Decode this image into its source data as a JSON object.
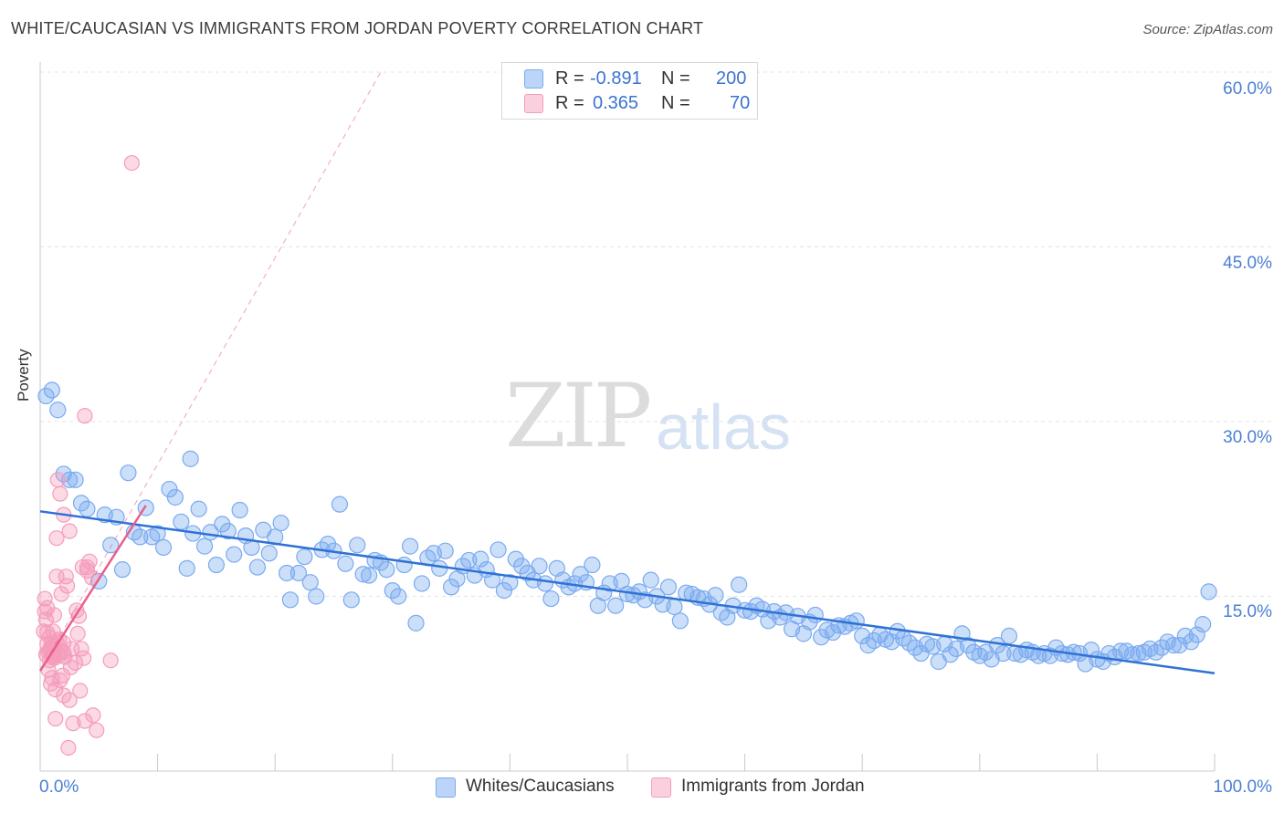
{
  "header": {
    "title": "WHITE/CAUCASIAN VS IMMIGRANTS FROM JORDAN POVERTY CORRELATION CHART",
    "source": "Source: ZipAtlas.com"
  },
  "watermark": {
    "zip": "ZIP",
    "atlas": "atlas"
  },
  "colors": {
    "blue": "#7aaaf0",
    "blue_line": "#2f72d4",
    "pink": "#f59cbb",
    "pink_line": "#e8608c",
    "tick_text": "#4a7fd4",
    "grid": "#e4e4e4"
  },
  "legend_top": {
    "rows": [
      {
        "r_label": "R =",
        "r_value": "-0.891",
        "n_label": "N =",
        "n_value": "200"
      },
      {
        "r_label": "R =",
        "r_value": "0.365",
        "n_label": "N =",
        "n_value": "70"
      }
    ]
  },
  "legend_bottom": {
    "items": [
      "Whites/Caucasians",
      "Immigrants from Jordan"
    ]
  },
  "chart_data": {
    "type": "scatter",
    "title": "WHITE/CAUCASIAN VS IMMIGRANTS FROM JORDAN POVERTY CORRELATION CHART",
    "xlabel": "",
    "ylabel": "Poverty",
    "xlim": [
      0,
      100
    ],
    "ylim": [
      0,
      60
    ],
    "y_ticks": [
      "15.0%",
      "30.0%",
      "45.0%",
      "60.0%"
    ],
    "y_tick_values": [
      15,
      30,
      45,
      60
    ],
    "x_tick_labels": [
      "0.0%",
      "100.0%"
    ],
    "grid": true,
    "series": [
      {
        "name": "Whites/Caucasians",
        "r": -0.891,
        "n": 200,
        "trend": {
          "x": [
            0,
            100
          ],
          "y": [
            22.3,
            8.4
          ]
        },
        "points": [
          [
            0.5,
            32.2
          ],
          [
            1,
            32.7
          ],
          [
            1.5,
            31
          ],
          [
            2,
            25.5
          ],
          [
            2.5,
            25
          ],
          [
            3,
            25
          ],
          [
            3.5,
            23
          ],
          [
            4,
            22.5
          ],
          [
            5,
            16.3
          ],
          [
            5.5,
            22
          ],
          [
            6,
            19.4
          ],
          [
            6.5,
            21.8
          ],
          [
            7,
            17.3
          ],
          [
            7.5,
            25.6
          ],
          [
            8,
            20.5
          ],
          [
            8.5,
            20.1
          ],
          [
            9,
            22.6
          ],
          [
            9.5,
            20.1
          ],
          [
            10,
            20.4
          ],
          [
            10.5,
            19.2
          ],
          [
            11,
            24.2
          ],
          [
            11.5,
            23.5
          ],
          [
            12,
            21.4
          ],
          [
            12.5,
            17.4
          ],
          [
            12.8,
            26.8
          ],
          [
            13,
            20.4
          ],
          [
            13.5,
            22.5
          ],
          [
            14,
            19.3
          ],
          [
            14.5,
            20.5
          ],
          [
            15,
            17.7
          ],
          [
            15.5,
            21.2
          ],
          [
            16,
            20.6
          ],
          [
            16.5,
            18.6
          ],
          [
            17,
            22.4
          ],
          [
            17.5,
            20.2
          ],
          [
            18,
            19.2
          ],
          [
            18.5,
            17.5
          ],
          [
            19,
            20.7
          ],
          [
            19.5,
            18.7
          ],
          [
            20,
            20.1
          ],
          [
            20.5,
            21.3
          ],
          [
            21,
            17
          ],
          [
            21.3,
            14.7
          ],
          [
            22,
            17
          ],
          [
            22.5,
            18.4
          ],
          [
            23,
            16.2
          ],
          [
            23.5,
            15
          ],
          [
            24,
            19
          ],
          [
            24.5,
            19.5
          ],
          [
            25,
            18.9
          ],
          [
            25.5,
            22.9
          ],
          [
            26,
            17.8
          ],
          [
            26.5,
            14.7
          ],
          [
            27,
            19.4
          ],
          [
            27.5,
            16.9
          ],
          [
            28,
            16.8
          ],
          [
            28.5,
            18.1
          ],
          [
            29,
            17.9
          ],
          [
            29.5,
            17.3
          ],
          [
            30,
            15.5
          ],
          [
            30.5,
            15
          ],
          [
            31,
            17.7
          ],
          [
            31.5,
            19.3
          ],
          [
            32,
            12.7
          ],
          [
            32.5,
            16.1
          ],
          [
            33,
            18.3
          ],
          [
            33.5,
            18.7
          ],
          [
            34,
            17.4
          ],
          [
            34.5,
            18.9
          ],
          [
            35,
            15.8
          ],
          [
            35.5,
            16.5
          ],
          [
            36,
            17.6
          ],
          [
            36.5,
            18.1
          ],
          [
            37,
            16.8
          ],
          [
            37.5,
            18.2
          ],
          [
            38,
            17.3
          ],
          [
            38.5,
            16.4
          ],
          [
            39,
            19
          ],
          [
            39.5,
            15.5
          ],
          [
            40,
            16.2
          ],
          [
            40.5,
            18.2
          ],
          [
            41,
            17.6
          ],
          [
            41.5,
            17
          ],
          [
            42,
            16.4
          ],
          [
            42.5,
            17.6
          ],
          [
            43,
            16.1
          ],
          [
            43.5,
            14.8
          ],
          [
            44,
            17.4
          ],
          [
            44.5,
            16.4
          ],
          [
            45,
            15.8
          ],
          [
            45.5,
            16.1
          ],
          [
            46,
            16.9
          ],
          [
            46.5,
            16.2
          ],
          [
            47,
            17.7
          ],
          [
            47.5,
            14.2
          ],
          [
            48,
            15.3
          ],
          [
            48.5,
            16.1
          ],
          [
            49,
            14.2
          ],
          [
            49.5,
            16.3
          ],
          [
            50,
            15.2
          ],
          [
            50.5,
            15.1
          ],
          [
            51,
            15.4
          ],
          [
            51.5,
            14.7
          ],
          [
            52,
            16.4
          ],
          [
            52.5,
            15
          ],
          [
            53,
            14.3
          ],
          [
            53.5,
            15.8
          ],
          [
            54,
            14.1
          ],
          [
            54.5,
            12.9
          ],
          [
            55,
            15.3
          ],
          [
            55.5,
            15.2
          ],
          [
            56,
            14.9
          ],
          [
            56.5,
            14.8
          ],
          [
            57,
            14.3
          ],
          [
            57.5,
            15.1
          ],
          [
            58,
            13.6
          ],
          [
            58.5,
            13.2
          ],
          [
            59,
            14.2
          ],
          [
            59.5,
            16
          ],
          [
            60,
            13.8
          ],
          [
            60.5,
            13.7
          ],
          [
            61,
            14.2
          ],
          [
            61.5,
            13.9
          ],
          [
            62,
            12.9
          ],
          [
            62.5,
            13.7
          ],
          [
            63,
            13.2
          ],
          [
            63.5,
            13.6
          ],
          [
            64,
            12.2
          ],
          [
            64.5,
            13.3
          ],
          [
            65,
            11.8
          ],
          [
            65.5,
            12.8
          ],
          [
            66,
            13.4
          ],
          [
            66.5,
            11.5
          ],
          [
            67,
            12.1
          ],
          [
            67.5,
            11.9
          ],
          [
            68,
            12.5
          ],
          [
            68.5,
            12.4
          ],
          [
            69,
            12.7
          ],
          [
            69.5,
            12.9
          ],
          [
            70,
            11.6
          ],
          [
            70.5,
            10.8
          ],
          [
            71,
            11.2
          ],
          [
            71.5,
            11.7
          ],
          [
            72,
            11.3
          ],
          [
            72.5,
            11.1
          ],
          [
            73,
            12
          ],
          [
            73.5,
            11.4
          ],
          [
            74,
            11
          ],
          [
            74.5,
            10.6
          ],
          [
            75,
            10.1
          ],
          [
            75.5,
            10.9
          ],
          [
            76,
            10.7
          ],
          [
            76.5,
            9.4
          ],
          [
            77,
            10.9
          ],
          [
            77.5,
            10
          ],
          [
            78,
            10.5
          ],
          [
            78.5,
            11.8
          ],
          [
            79,
            10.8
          ],
          [
            79.5,
            10.2
          ],
          [
            80,
            9.9
          ],
          [
            80.5,
            10.2
          ],
          [
            81,
            9.6
          ],
          [
            81.5,
            10.8
          ],
          [
            82,
            10.1
          ],
          [
            82.5,
            11.6
          ],
          [
            83,
            10.1
          ],
          [
            83.5,
            10
          ],
          [
            84,
            10.4
          ],
          [
            84.5,
            10.2
          ],
          [
            85,
            9.9
          ],
          [
            85.5,
            10.1
          ],
          [
            86,
            9.9
          ],
          [
            86.5,
            10.6
          ],
          [
            87,
            10.1
          ],
          [
            87.5,
            10
          ],
          [
            88,
            10.2
          ],
          [
            88.5,
            10.1
          ],
          [
            89,
            9.2
          ],
          [
            89.5,
            10.4
          ],
          [
            90,
            9.6
          ],
          [
            90.5,
            9.4
          ],
          [
            91,
            10.1
          ],
          [
            91.5,
            9.8
          ],
          [
            92,
            10.3
          ],
          [
            92.5,
            10.3
          ],
          [
            93,
            10
          ],
          [
            93.5,
            10.1
          ],
          [
            94,
            10.2
          ],
          [
            94.5,
            10.5
          ],
          [
            95,
            10.2
          ],
          [
            95.5,
            10.6
          ],
          [
            96,
            11.1
          ],
          [
            96.5,
            10.8
          ],
          [
            97,
            10.8
          ],
          [
            97.5,
            11.6
          ],
          [
            98,
            11.1
          ],
          [
            98.5,
            11.7
          ],
          [
            99,
            12.6
          ],
          [
            99.5,
            15.4
          ]
        ]
      },
      {
        "name": "Immigrants from Jordan",
        "r": 0.365,
        "n": 70,
        "trend": {
          "x": [
            0,
            9.0
          ],
          "y": [
            8.6,
            22.8
          ]
        },
        "trend_ext": {
          "x": [
            0,
            29
          ],
          "y": [
            8.6,
            60
          ]
        },
        "points": [
          [
            0.3,
            12
          ],
          [
            0.4,
            14.8
          ],
          [
            0.5,
            10
          ],
          [
            0.5,
            13
          ],
          [
            0.6,
            10.9
          ],
          [
            0.6,
            14
          ],
          [
            0.7,
            8.7
          ],
          [
            0.7,
            10.2
          ],
          [
            0.8,
            11.5
          ],
          [
            0.8,
            9.5
          ],
          [
            0.9,
            10.5
          ],
          [
            0.9,
            7.5
          ],
          [
            1,
            11
          ],
          [
            1,
            8
          ],
          [
            1.1,
            9.8
          ],
          [
            1.1,
            12
          ],
          [
            1.2,
            10
          ],
          [
            1.2,
            13.4
          ],
          [
            1.3,
            7
          ],
          [
            1.3,
            4.5
          ],
          [
            1.4,
            20
          ],
          [
            1.4,
            16.7
          ],
          [
            1.5,
            25
          ],
          [
            1.5,
            10.1
          ],
          [
            1.6,
            11.3
          ],
          [
            1.7,
            23.8
          ],
          [
            1.7,
            7.8
          ],
          [
            1.8,
            15.2
          ],
          [
            1.9,
            8.2
          ],
          [
            2,
            6.5
          ],
          [
            2,
            22
          ],
          [
            2,
            11
          ],
          [
            2.1,
            9.8
          ],
          [
            2.2,
            16.7
          ],
          [
            2.3,
            15.9
          ],
          [
            2.4,
            2
          ],
          [
            2.5,
            20.6
          ],
          [
            2.5,
            6.1
          ],
          [
            2.6,
            8.9
          ],
          [
            2.7,
            10.5
          ],
          [
            2.8,
            4.1
          ],
          [
            3,
            9.3
          ],
          [
            3.1,
            13.8
          ],
          [
            3.2,
            11.8
          ],
          [
            3.3,
            13.3
          ],
          [
            3.4,
            6.9
          ],
          [
            3.5,
            10.5
          ],
          [
            3.6,
            17.5
          ],
          [
            3.7,
            9.7
          ],
          [
            3.8,
            30.5
          ],
          [
            3.8,
            4.3
          ],
          [
            4,
            17.2
          ],
          [
            4,
            17.5
          ],
          [
            4.2,
            18
          ],
          [
            4.4,
            16.6
          ],
          [
            4.5,
            4.8
          ],
          [
            4.8,
            3.5
          ],
          [
            6,
            9.5
          ],
          [
            7.8,
            52.2
          ],
          [
            0.4,
            13.7
          ],
          [
            0.6,
            11.9
          ],
          [
            0.8,
            10.4
          ],
          [
            1,
            9.9
          ],
          [
            1.2,
            9.7
          ],
          [
            1.4,
            11.1
          ],
          [
            1.6,
            9.9
          ],
          [
            1.8,
            10.2
          ],
          [
            2,
            10.2
          ],
          [
            1.3,
            10.7
          ],
          [
            0.9,
            10.6
          ]
        ]
      }
    ]
  }
}
